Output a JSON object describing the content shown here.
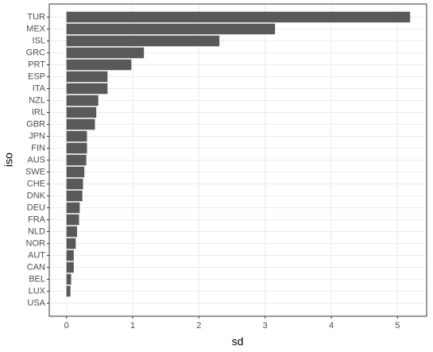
{
  "chart_data": {
    "type": "barh",
    "x_label": "sd",
    "y_label": "iso",
    "categories": [
      "TUR",
      "MEX",
      "ISL",
      "GRC",
      "PRT",
      "ESP",
      "ITA",
      "NZL",
      "IRL",
      "GBR",
      "JPN",
      "FIN",
      "AUS",
      "SWE",
      "CHE",
      "DNK",
      "DEU",
      "FRA",
      "NLD",
      "NOR",
      "AUT",
      "CAN",
      "BEL",
      "LUX",
      "USA"
    ],
    "values": [
      5.19,
      3.15,
      2.31,
      1.17,
      0.98,
      0.62,
      0.62,
      0.48,
      0.45,
      0.43,
      0.31,
      0.31,
      0.3,
      0.27,
      0.25,
      0.24,
      0.2,
      0.19,
      0.16,
      0.14,
      0.11,
      0.11,
      0.07,
      0.06,
      0
    ],
    "color": "#595959",
    "xlim": [
      -0.26,
      5.44
    ],
    "xticks": [
      0,
      1,
      2,
      3,
      4,
      5
    ],
    "grid": true
  }
}
